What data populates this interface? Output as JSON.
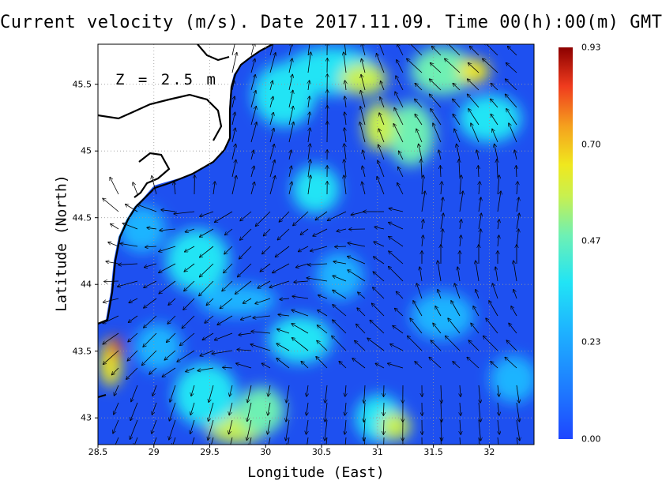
{
  "title": "Current velocity (m/s). Date 2017.11.09. Time 00(h):00(m) GMT",
  "depth_label": "Z = 2.5 m",
  "x_axis": {
    "label": "Longitude (East)",
    "ticks": [
      "28.5",
      "29",
      "29.5",
      "30",
      "30.5",
      "31",
      "31.5",
      "32"
    ],
    "range": [
      28.5,
      32.4
    ]
  },
  "y_axis": {
    "label": "Latitude (North)",
    "ticks": [
      "43",
      "43.5",
      "44",
      "44.5",
      "45",
      "45.5"
    ],
    "range": [
      42.8,
      45.8
    ]
  },
  "colorbar": {
    "ticks": [
      "0.00",
      "0.23",
      "0.47",
      "0.70",
      "0.93"
    ],
    "range": [
      0,
      0.93
    ],
    "colors": [
      "#1e46ff",
      "#1eb4ff",
      "#21e4f5",
      "#c8f050",
      "#f0e81e",
      "#f03c1e",
      "#8c0000"
    ]
  },
  "colors": {
    "land": "#ffffff",
    "coastline": "#000000",
    "sea_low": "#1e50f0",
    "grid": "#9a9a9a"
  }
}
